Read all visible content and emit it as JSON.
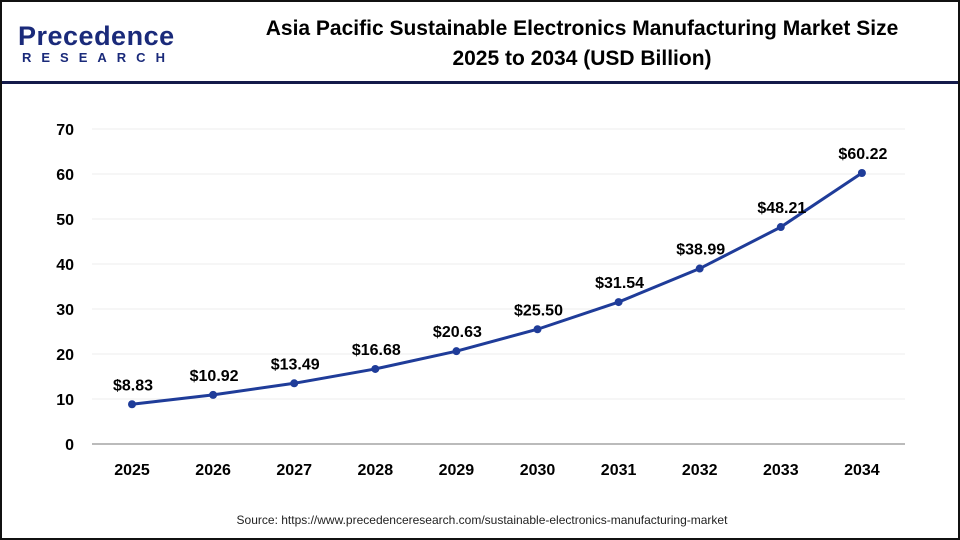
{
  "logo": {
    "line1": "Precedence",
    "line2": "RESEARCH"
  },
  "title_line1": "Asia Pacific Sustainable Electronics Manufacturing Market Size",
  "title_line2": "2025 to 2034 (USD Billion)",
  "source": "Source: https://www.precedenceresearch.com/sustainable-electronics-manufacturing-market",
  "chart_data": {
    "type": "line",
    "title": "Asia Pacific Sustainable Electronics Manufacturing Market Size 2025 to 2034 (USD Billion)",
    "categories": [
      "2025",
      "2026",
      "2027",
      "2028",
      "2029",
      "2030",
      "2031",
      "2032",
      "2033",
      "2034"
    ],
    "values": [
      8.83,
      10.92,
      13.49,
      16.68,
      20.63,
      25.5,
      31.54,
      38.99,
      48.21,
      60.22
    ],
    "data_labels": [
      "$8.83",
      "$10.92",
      "$13.49",
      "$16.68",
      "$20.63",
      "$25.50",
      "$31.54",
      "$38.99",
      "$48.21",
      "$60.22"
    ],
    "ylim": [
      0,
      70
    ],
    "yticks": [
      0,
      10,
      20,
      30,
      40,
      50,
      60,
      70
    ],
    "grid": true,
    "line_color": "#1f3c99"
  }
}
